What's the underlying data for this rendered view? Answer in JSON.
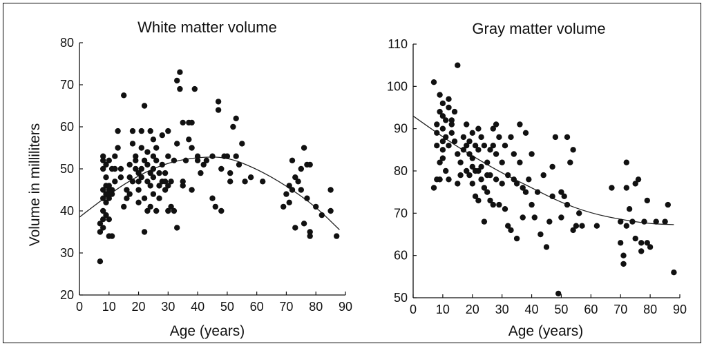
{
  "chart_data": [
    {
      "type": "scatter",
      "title": "White matter volume",
      "xlabel": "Age (years)",
      "ylabel": "Volume in milliliters",
      "xlim": [
        0,
        90
      ],
      "ylim": [
        20,
        80
      ],
      "xticks": [
        "0",
        "10",
        "20",
        "30",
        "40",
        "50",
        "60",
        "70",
        "80",
        "90"
      ],
      "yticks": [
        "80",
        "70",
        "60",
        "50",
        "40",
        "30",
        "20"
      ],
      "grid": false,
      "fit_curve": [
        [
          0,
          38.5
        ],
        [
          10,
          44
        ],
        [
          20,
          48.5
        ],
        [
          30,
          51.5
        ],
        [
          40,
          52.8
        ],
        [
          50,
          52.8
        ],
        [
          60,
          50
        ],
        [
          70,
          46
        ],
        [
          80,
          41
        ],
        [
          88,
          35.5
        ]
      ],
      "points": [
        [
          7,
          28
        ],
        [
          7,
          35
        ],
        [
          7,
          37
        ],
        [
          8,
          38
        ],
        [
          8,
          36
        ],
        [
          8,
          40
        ],
        [
          8,
          43
        ],
        [
          8,
          45
        ],
        [
          8,
          50
        ],
        [
          8,
          52
        ],
        [
          8,
          53
        ],
        [
          9,
          39
        ],
        [
          9,
          42
        ],
        [
          9,
          44
        ],
        [
          9,
          46
        ],
        [
          9,
          48
        ],
        [
          9,
          51
        ],
        [
          10,
          44
        ],
        [
          10,
          45
        ],
        [
          10,
          46
        ],
        [
          10,
          43
        ],
        [
          10,
          34
        ],
        [
          10,
          38
        ],
        [
          10,
          52
        ],
        [
          11,
          44
        ],
        [
          11,
          45
        ],
        [
          11,
          50
        ],
        [
          11,
          34
        ],
        [
          12,
          47
        ],
        [
          12,
          53
        ],
        [
          12,
          50
        ],
        [
          13,
          59
        ],
        [
          13,
          55
        ],
        [
          14,
          50
        ],
        [
          14,
          48
        ],
        [
          15,
          67.5
        ],
        [
          15,
          41
        ],
        [
          16,
          43
        ],
        [
          16,
          45
        ],
        [
          17,
          44
        ],
        [
          17,
          48
        ],
        [
          17,
          51
        ],
        [
          18,
          47
        ],
        [
          18,
          56
        ],
        [
          18,
          59
        ],
        [
          19,
          50
        ],
        [
          19,
          52
        ],
        [
          19,
          53
        ],
        [
          20,
          47
        ],
        [
          20,
          49
        ],
        [
          20,
          45
        ],
        [
          20,
          42
        ],
        [
          21,
          50
        ],
        [
          21,
          55
        ],
        [
          21,
          48
        ],
        [
          21,
          59
        ],
        [
          22,
          65
        ],
        [
          22,
          52
        ],
        [
          22,
          43
        ],
        [
          22,
          35
        ],
        [
          23,
          47
        ],
        [
          23,
          51
        ],
        [
          23,
          54
        ],
        [
          23,
          40
        ],
        [
          24,
          49
        ],
        [
          24,
          46
        ],
        [
          24,
          59
        ],
        [
          24,
          41
        ],
        [
          25,
          48
        ],
        [
          25,
          50
        ],
        [
          25,
          57
        ],
        [
          25,
          53
        ],
        [
          25,
          44
        ],
        [
          26,
          55
        ],
        [
          26,
          52
        ],
        [
          26,
          40
        ],
        [
          27,
          46
        ],
        [
          27,
          49
        ],
        [
          27,
          43
        ],
        [
          28,
          47
        ],
        [
          28,
          51
        ],
        [
          28,
          58
        ],
        [
          29,
          45
        ],
        [
          29,
          47
        ],
        [
          29,
          49
        ],
        [
          30,
          59
        ],
        [
          30,
          46
        ],
        [
          30,
          53
        ],
        [
          30,
          40
        ],
        [
          31,
          47
        ],
        [
          31,
          41
        ],
        [
          32,
          52
        ],
        [
          32,
          40
        ],
        [
          33,
          71
        ],
        [
          33,
          36
        ],
        [
          33,
          56
        ],
        [
          34,
          73
        ],
        [
          34,
          69
        ],
        [
          35,
          61
        ],
        [
          35,
          47
        ],
        [
          35,
          46
        ],
        [
          36,
          52
        ],
        [
          37,
          61
        ],
        [
          37,
          57
        ],
        [
          38,
          61
        ],
        [
          38,
          55
        ],
        [
          38,
          45
        ],
        [
          39,
          69
        ],
        [
          40,
          53
        ],
        [
          40,
          52
        ],
        [
          41,
          49
        ],
        [
          42,
          51
        ],
        [
          43,
          52
        ],
        [
          45,
          53
        ],
        [
          45,
          43
        ],
        [
          46,
          41
        ],
        [
          47,
          66
        ],
        [
          47,
          64
        ],
        [
          48,
          50
        ],
        [
          48,
          40
        ],
        [
          49,
          53
        ],
        [
          50,
          53
        ],
        [
          51,
          49
        ],
        [
          51,
          47
        ],
        [
          52,
          60
        ],
        [
          53,
          62
        ],
        [
          53,
          53
        ],
        [
          54,
          51
        ],
        [
          55,
          56
        ],
        [
          56,
          47
        ],
        [
          58,
          48
        ],
        [
          62,
          47
        ],
        [
          69,
          41
        ],
        [
          70,
          44
        ],
        [
          71,
          46
        ],
        [
          71,
          42
        ],
        [
          72,
          52
        ],
        [
          72,
          45
        ],
        [
          73,
          48
        ],
        [
          73,
          36
        ],
        [
          74,
          47
        ],
        [
          75,
          45
        ],
        [
          75,
          50
        ],
        [
          76,
          55
        ],
        [
          76,
          37
        ],
        [
          77,
          51
        ],
        [
          77,
          43
        ],
        [
          78,
          35
        ],
        [
          78,
          34
        ],
        [
          78,
          51
        ],
        [
          80,
          41
        ],
        [
          82,
          39
        ],
        [
          85,
          45
        ],
        [
          85,
          40
        ],
        [
          87,
          34
        ]
      ]
    },
    {
      "type": "scatter",
      "title": "Gray matter volume",
      "xlabel": "Age (years)",
      "ylabel": "",
      "xlim": [
        0,
        90
      ],
      "ylim": [
        50,
        110
      ],
      "xticks": [
        "0",
        "10",
        "20",
        "30",
        "40",
        "50",
        "60",
        "70",
        "80",
        "90"
      ],
      "yticks": [
        "110",
        "100",
        "90",
        "80",
        "70",
        "60",
        "50"
      ],
      "grid": false,
      "fit_curve": [
        [
          0,
          93
        ],
        [
          10,
          88
        ],
        [
          20,
          83.5
        ],
        [
          30,
          79.5
        ],
        [
          40,
          76
        ],
        [
          50,
          72.5
        ],
        [
          60,
          70
        ],
        [
          70,
          68.5
        ],
        [
          80,
          67.5
        ],
        [
          88,
          67.3
        ]
      ],
      "points": [
        [
          7,
          101
        ],
        [
          7,
          76
        ],
        [
          8,
          91
        ],
        [
          8,
          86
        ],
        [
          8,
          78
        ],
        [
          8,
          89
        ],
        [
          9,
          98
        ],
        [
          9,
          94
        ],
        [
          9,
          82
        ],
        [
          9,
          78
        ],
        [
          10,
          96
        ],
        [
          10,
          93
        ],
        [
          10,
          90
        ],
        [
          10,
          87
        ],
        [
          10,
          85
        ],
        [
          10,
          83
        ],
        [
          11,
          92
        ],
        [
          11,
          88
        ],
        [
          11,
          80
        ],
        [
          12,
          95
        ],
        [
          12,
          97
        ],
        [
          12,
          86
        ],
        [
          12,
          78
        ],
        [
          13,
          92
        ],
        [
          13,
          91
        ],
        [
          13,
          89
        ],
        [
          14,
          94
        ],
        [
          14,
          87
        ],
        [
          15,
          105
        ],
        [
          15,
          84
        ],
        [
          15,
          77
        ],
        [
          16,
          82
        ],
        [
          16,
          79
        ],
        [
          17,
          88
        ],
        [
          17,
          85
        ],
        [
          18,
          86
        ],
        [
          18,
          80
        ],
        [
          18,
          91
        ],
        [
          19,
          87
        ],
        [
          19,
          84
        ],
        [
          19,
          79
        ],
        [
          20,
          89
        ],
        [
          20,
          83
        ],
        [
          20,
          81
        ],
        [
          20,
          77
        ],
        [
          21,
          86
        ],
        [
          21,
          80
        ],
        [
          21,
          74
        ],
        [
          22,
          90
        ],
        [
          22,
          85
        ],
        [
          22,
          80
        ],
        [
          22,
          73
        ],
        [
          23,
          88
        ],
        [
          23,
          81
        ],
        [
          23,
          78
        ],
        [
          24,
          86
        ],
        [
          24,
          76
        ],
        [
          24,
          68
        ],
        [
          25,
          82
        ],
        [
          25,
          79
        ],
        [
          25,
          75
        ],
        [
          26,
          85
        ],
        [
          26,
          79
        ],
        [
          26,
          73
        ],
        [
          27,
          90
        ],
        [
          27,
          86
        ],
        [
          27,
          72
        ],
        [
          28,
          91
        ],
        [
          28,
          84
        ],
        [
          28,
          78
        ],
        [
          29,
          88
        ],
        [
          29,
          72
        ],
        [
          30,
          82
        ],
        [
          30,
          77
        ],
        [
          31,
          86
        ],
        [
          31,
          71
        ],
        [
          32,
          79
        ],
        [
          32,
          67
        ],
        [
          33,
          88
        ],
        [
          33,
          66
        ],
        [
          34,
          84
        ],
        [
          34,
          78
        ],
        [
          35,
          77
        ],
        [
          35,
          64
        ],
        [
          36,
          91
        ],
        [
          36,
          82
        ],
        [
          37,
          76
        ],
        [
          37,
          69
        ],
        [
          38,
          75
        ],
        [
          38,
          89
        ],
        [
          39,
          78
        ],
        [
          40,
          84
        ],
        [
          40,
          72
        ],
        [
          41,
          69
        ],
        [
          42,
          75
        ],
        [
          43,
          65
        ],
        [
          44,
          79
        ],
        [
          45,
          62
        ],
        [
          46,
          68
        ],
        [
          47,
          81
        ],
        [
          47,
          74
        ],
        [
          48,
          88
        ],
        [
          49,
          51
        ],
        [
          50,
          75
        ],
        [
          50,
          69
        ],
        [
          51,
          74
        ],
        [
          52,
          88
        ],
        [
          52,
          72
        ],
        [
          53,
          82
        ],
        [
          54,
          85
        ],
        [
          54,
          66
        ],
        [
          55,
          67
        ],
        [
          56,
          70
        ],
        [
          57,
          67
        ],
        [
          62,
          67
        ],
        [
          67,
          76
        ],
        [
          70,
          68
        ],
        [
          70,
          63
        ],
        [
          71,
          60
        ],
        [
          71,
          58
        ],
        [
          72,
          82
        ],
        [
          72,
          76
        ],
        [
          72,
          67
        ],
        [
          73,
          71
        ],
        [
          74,
          68
        ],
        [
          75,
          77
        ],
        [
          75,
          64
        ],
        [
          76,
          78
        ],
        [
          77,
          61
        ],
        [
          77,
          63
        ],
        [
          78,
          68
        ],
        [
          79,
          73
        ],
        [
          79,
          63
        ],
        [
          80,
          62
        ],
        [
          82,
          68
        ],
        [
          85,
          68
        ],
        [
          86,
          72
        ],
        [
          88,
          56
        ]
      ]
    }
  ]
}
